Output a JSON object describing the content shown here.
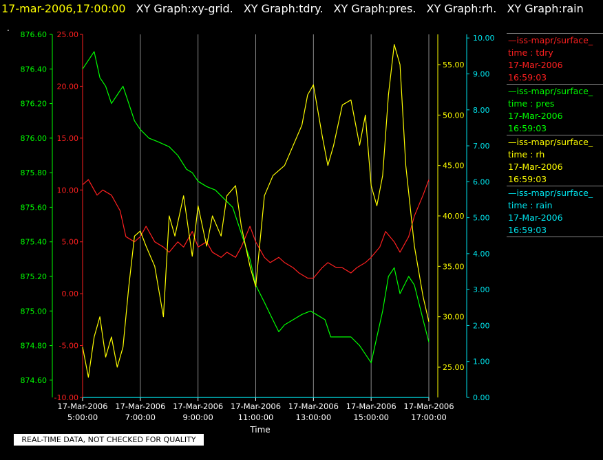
{
  "header": {
    "timestamp": "17-mar-2006,17:00:00",
    "tabs": [
      "XY Graph:xy-grid.",
      "XY Graph:tdry.",
      "XY Graph:pres.",
      "XY Graph:rh.",
      "XY Graph:rain"
    ]
  },
  "marker": ".",
  "notice": "REAL-TIME DATA, NOT CHECKED FOR QUALITY",
  "legend": [
    {
      "line": "—iss-mapr/surface_",
      "var": "time : tdry",
      "date": "17-Mar-2006",
      "time": "16:59:03",
      "color": "#ff2020"
    },
    {
      "line": "—iss-mapr/surface_",
      "var": "time : pres",
      "date": "17-Mar-2006",
      "time": "16:59:03",
      "color": "#00ff00"
    },
    {
      "line": "—iss-mapr/surface_",
      "var": "time : rh",
      "date": "17-Mar-2006",
      "time": "16:59:03",
      "color": "#ffff00"
    },
    {
      "line": "—iss-mapr/surface_",
      "var": "time : rain",
      "date": "17-Mar-2006",
      "time": "16:59:03",
      "color": "#00e5ee"
    }
  ],
  "chart_data": {
    "type": "line",
    "xlabel": "Time",
    "x_ticks": [
      {
        "hour": 5,
        "date": "17-Mar-2006",
        "time": "5:00:00"
      },
      {
        "hour": 7,
        "date": "17-Mar-2006",
        "time": "7:00:00"
      },
      {
        "hour": 9,
        "date": "17-Mar-2006",
        "time": "9:00:00"
      },
      {
        "hour": 11,
        "date": "17-Mar-2006",
        "time": "11:00:00"
      },
      {
        "hour": 13,
        "date": "17-Mar-2006",
        "time": "13:00:00"
      },
      {
        "hour": 15,
        "date": "17-Mar-2006",
        "time": "15:00:00"
      },
      {
        "hour": 17,
        "date": "17-Mar-2006",
        "time": "17:00:00"
      }
    ],
    "xlim": [
      5,
      17
    ],
    "grid": "vertical",
    "axes": {
      "pres": {
        "color": "#00ff00",
        "range": [
          874.5,
          876.6
        ],
        "ticks": [
          "876.60",
          "876.40",
          "876.20",
          "876.00",
          "875.80",
          "875.60",
          "875.40",
          "875.20",
          "875.00",
          "874.80",
          "874.60"
        ]
      },
      "tdry": {
        "color": "#ff2020",
        "range": [
          -10,
          25
        ],
        "ticks": [
          "25.00",
          "20.00",
          "15.00",
          "10.00",
          "5.00",
          "0.00",
          "-5.00",
          "-10.00"
        ]
      },
      "rh": {
        "color": "#ffff00",
        "range": [
          22,
          58
        ],
        "ticks": [
          "55.00",
          "50.00",
          "45.00",
          "40.00",
          "35.00",
          "30.00",
          "25.00"
        ]
      },
      "rain": {
        "color": "#00e5ee",
        "range": [
          0,
          10.1
        ],
        "ticks": [
          "10.00",
          "9.00",
          "8.00",
          "7.00",
          "6.00",
          "5.00",
          "4.00",
          "3.00",
          "2.00",
          "1.00",
          "0.00"
        ]
      }
    },
    "series": [
      {
        "name": "tdry",
        "axis": "tdry",
        "color": "#ff2020",
        "x": [
          5.0,
          5.2,
          5.5,
          5.7,
          6.0,
          6.3,
          6.5,
          6.8,
          7.0,
          7.2,
          7.5,
          7.8,
          8.0,
          8.3,
          8.5,
          8.8,
          9.0,
          9.3,
          9.5,
          9.8,
          10.0,
          10.3,
          10.5,
          10.8,
          11.0,
          11.3,
          11.5,
          11.8,
          12.0,
          12.3,
          12.5,
          12.8,
          13.0,
          13.3,
          13.5,
          13.8,
          14.0,
          14.3,
          14.5,
          14.8,
          15.0,
          15.3,
          15.5,
          15.8,
          16.0,
          16.3,
          16.5,
          16.8,
          17.0
        ],
        "y": [
          10.5,
          11.0,
          9.5,
          10.0,
          9.5,
          8.0,
          5.5,
          5.0,
          5.5,
          6.5,
          5.0,
          4.5,
          4.0,
          5.0,
          4.5,
          6.0,
          4.5,
          5.0,
          4.0,
          3.5,
          4.0,
          3.5,
          4.5,
          6.5,
          5.0,
          3.5,
          3.0,
          3.5,
          3.0,
          2.5,
          2.0,
          1.5,
          1.5,
          2.5,
          3.0,
          2.5,
          2.5,
          2.0,
          2.5,
          3.0,
          3.5,
          4.5,
          6.0,
          5.0,
          4.0,
          5.5,
          7.5,
          9.5,
          11.0
        ]
      },
      {
        "name": "pres",
        "axis": "pres",
        "color": "#00ff00",
        "x": [
          5.0,
          5.2,
          5.4,
          5.6,
          5.8,
          6.0,
          6.2,
          6.4,
          6.6,
          6.8,
          7.0,
          7.3,
          7.6,
          8.0,
          8.3,
          8.6,
          8.8,
          9.0,
          9.3,
          9.6,
          9.9,
          10.2,
          10.5,
          10.8,
          11.0,
          11.3,
          11.5,
          11.8,
          12.0,
          12.3,
          12.6,
          12.9,
          13.2,
          13.4,
          13.6,
          14.0,
          14.3,
          14.6,
          14.8,
          15.0,
          15.2,
          15.4,
          15.6,
          15.8,
          16.0,
          16.3,
          16.5,
          16.8,
          17.0
        ],
        "y": [
          876.4,
          876.45,
          876.5,
          876.35,
          876.3,
          876.2,
          876.25,
          876.3,
          876.2,
          876.1,
          876.05,
          876.0,
          875.98,
          875.95,
          875.9,
          875.82,
          875.8,
          875.75,
          875.72,
          875.7,
          875.65,
          875.6,
          875.45,
          875.3,
          875.15,
          875.05,
          874.98,
          874.88,
          874.92,
          874.95,
          874.98,
          875.0,
          874.97,
          874.95,
          874.85,
          874.85,
          874.85,
          874.8,
          874.75,
          874.7,
          874.85,
          875.0,
          875.2,
          875.25,
          875.1,
          875.2,
          875.15,
          874.95,
          874.82
        ]
      },
      {
        "name": "rh",
        "axis": "rh",
        "color": "#ffff00",
        "x": [
          5.0,
          5.2,
          5.4,
          5.6,
          5.8,
          6.0,
          6.2,
          6.4,
          6.6,
          6.8,
          7.0,
          7.2,
          7.5,
          7.8,
          8.0,
          8.2,
          8.5,
          8.8,
          9.0,
          9.3,
          9.5,
          9.8,
          10.0,
          10.3,
          10.5,
          10.8,
          11.0,
          11.3,
          11.6,
          12.0,
          12.3,
          12.6,
          12.8,
          13.0,
          13.3,
          13.5,
          13.7,
          14.0,
          14.3,
          14.6,
          14.8,
          15.0,
          15.2,
          15.4,
          15.6,
          15.8,
          16.0,
          16.2,
          16.5,
          16.8,
          17.0
        ],
        "y": [
          27.0,
          24.0,
          28.0,
          30.0,
          26.0,
          28.0,
          25.0,
          27.0,
          33.0,
          38.0,
          38.5,
          37.0,
          35.0,
          30.0,
          40.0,
          38.0,
          42.0,
          36.0,
          41.0,
          37.0,
          40.0,
          38.0,
          42.0,
          43.0,
          39.0,
          35.0,
          33.0,
          42.0,
          44.0,
          45.0,
          47.0,
          49.0,
          52.0,
          53.0,
          48.0,
          45.0,
          47.0,
          51.0,
          51.5,
          47.0,
          50.0,
          43.0,
          41.0,
          44.0,
          52.0,
          57.0,
          55.0,
          45.0,
          37.0,
          32.0,
          29.5
        ]
      },
      {
        "name": "rain",
        "axis": "rain",
        "color": "#00e5ee",
        "x": [
          5.0,
          17.0
        ],
        "y": [
          0.0,
          0.0
        ]
      }
    ]
  }
}
